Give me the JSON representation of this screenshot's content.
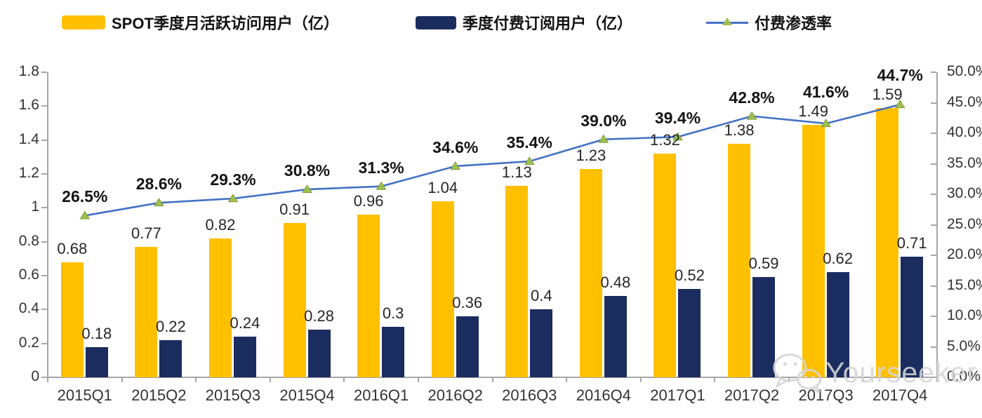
{
  "legend": {
    "items": [
      {
        "id": "mau",
        "label": "SPOT季度月活跃访问用户（亿）"
      },
      {
        "id": "paid",
        "label": "季度付费订阅用户（亿）"
      },
      {
        "id": "penetration",
        "label": "付费渗透率"
      }
    ]
  },
  "colors": {
    "mau_bar": "#FFC000",
    "paid_bar": "#1B2C5F",
    "line": "#4472C4",
    "marker_fill": "#9FBF4E",
    "marker_stroke": "#7E9E3B",
    "axis": "#A6A6A6",
    "watermark": "#D6D6D6"
  },
  "chart_data": {
    "type": "combo-bar-line",
    "title": "",
    "grid": false,
    "legend_position": "top",
    "categories": [
      "2015Q1",
      "2015Q2",
      "2015Q3",
      "2015Q4",
      "2016Q1",
      "2016Q2",
      "2016Q3",
      "2016Q4",
      "2017Q1",
      "2017Q2",
      "2017Q3",
      "2017Q4"
    ],
    "series": [
      {
        "name": "SPOT季度月活跃访问用户（亿）",
        "type": "bar",
        "axis": "left",
        "values": [
          0.68,
          0.77,
          0.82,
          0.91,
          0.96,
          1.04,
          1.13,
          1.23,
          1.32,
          1.38,
          1.49,
          1.59
        ],
        "labels": [
          "0.68",
          "0.77",
          "0.82",
          "0.91",
          "0.96",
          "1.04",
          "1.13",
          "1.23",
          "1.32",
          "1.38",
          "1.49",
          "1.59"
        ]
      },
      {
        "name": "季度付费订阅用户（亿）",
        "type": "bar",
        "axis": "left",
        "values": [
          0.18,
          0.22,
          0.24,
          0.28,
          0.3,
          0.36,
          0.4,
          0.48,
          0.52,
          0.59,
          0.62,
          0.71
        ],
        "labels": [
          "0.18",
          "0.22",
          "0.24",
          "0.28",
          "0.3",
          "0.36",
          "0.4",
          "0.48",
          "0.52",
          "0.59",
          "0.62",
          "0.71"
        ]
      },
      {
        "name": "付费渗透率",
        "type": "line",
        "axis": "right",
        "values": [
          26.5,
          28.6,
          29.3,
          30.8,
          31.3,
          34.6,
          35.4,
          39.0,
          39.4,
          42.8,
          41.6,
          44.7
        ],
        "labels": [
          "26.5%",
          "28.6%",
          "29.3%",
          "30.8%",
          "31.3%",
          "34.6%",
          "35.4%",
          "39.0%",
          "39.4%",
          "42.8%",
          "41.6%",
          "44.7%"
        ]
      }
    ],
    "left_axis": {
      "min": 0,
      "max": 1.8,
      "ticks": [
        "0",
        "0.2",
        "0.4",
        "0.6",
        "0.8",
        "1",
        "1.2",
        "1.4",
        "1.6",
        "1.8"
      ]
    },
    "right_axis": {
      "min": 0,
      "max": 50,
      "ticks": [
        "0.0%",
        "5.0%",
        "10.0%",
        "15.0%",
        "20.0%",
        "25.0%",
        "30.0%",
        "35.0%",
        "40.0%",
        "45.0%",
        "50.0%"
      ]
    }
  },
  "watermark": {
    "text": "Yourseeker",
    "icon": "wechat-icon"
  }
}
